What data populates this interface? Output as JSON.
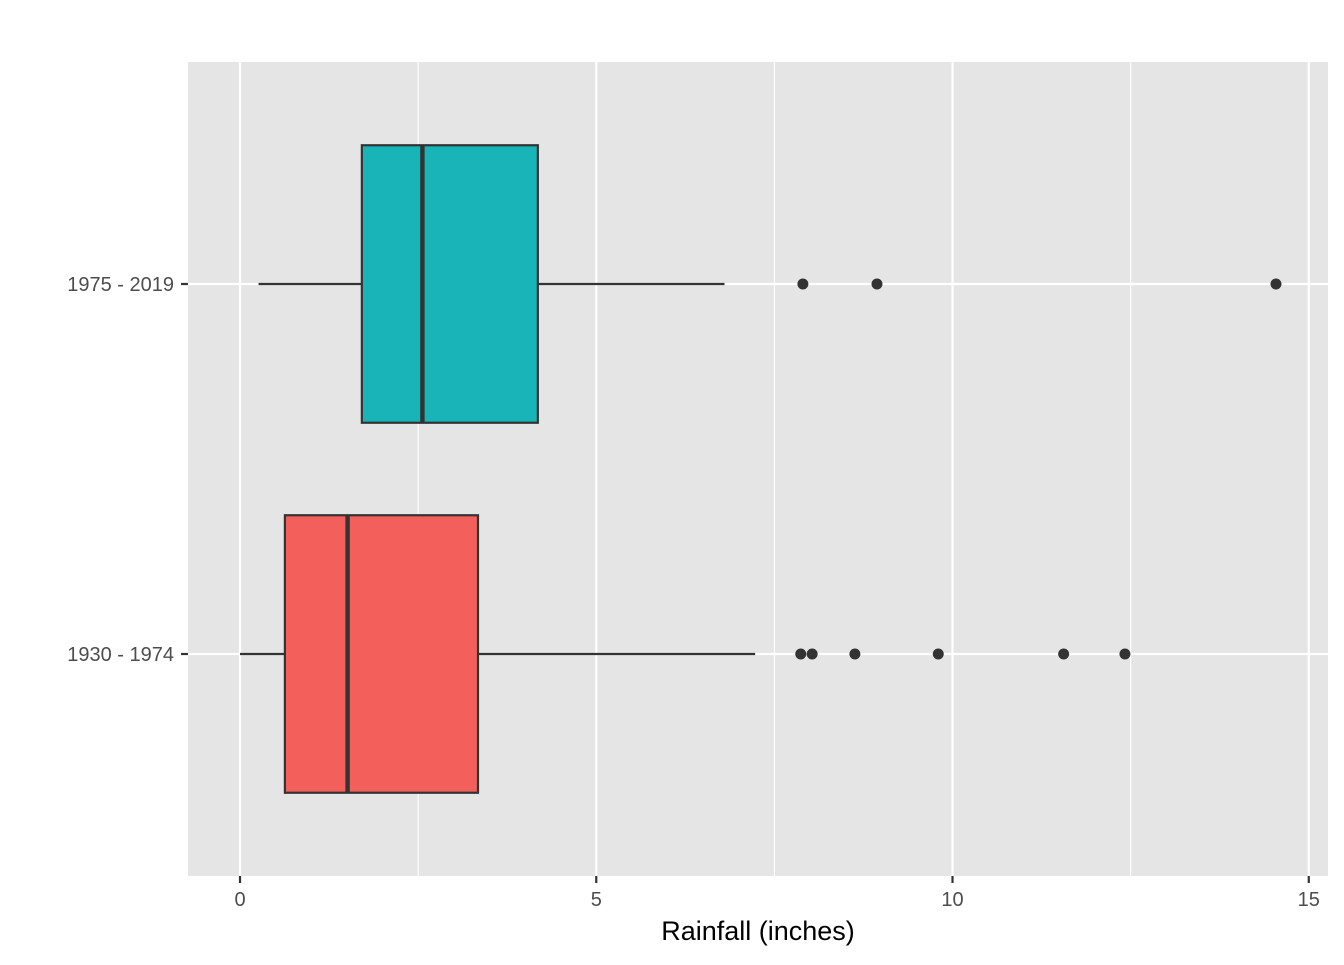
{
  "chart_data": {
    "type": "boxplot",
    "orientation": "horizontal",
    "title": "",
    "xlabel": "Rainfall (inches)",
    "ylabel": "",
    "xlim": [
      -0.73,
      15.27
    ],
    "x_ticks": [
      0,
      5,
      10,
      15
    ],
    "x_minor_ticks": [
      2.5,
      7.5,
      12.5
    ],
    "grid": true,
    "legend": "none",
    "panel_background": "#e5e5e5",
    "grid_color": "#ffffff",
    "box_outline_color": "#333333",
    "categories": [
      "1930 - 1974",
      "1975 - 2019"
    ],
    "series": [
      {
        "category": "1930 - 1974",
        "color": "#f3605c",
        "whisker_low": 0.0,
        "q1": 0.63,
        "median": 1.51,
        "q3": 3.34,
        "whisker_high": 7.23,
        "outliers": [
          7.87,
          8.03,
          8.63,
          9.8,
          11.56,
          12.42
        ]
      },
      {
        "category": "1975 - 2019",
        "color": "#19b4b8",
        "whisker_low": 0.26,
        "q1": 1.71,
        "median": 2.56,
        "q3": 4.18,
        "whisker_high": 6.8,
        "outliers": [
          7.9,
          8.94,
          14.54
        ]
      }
    ]
  }
}
